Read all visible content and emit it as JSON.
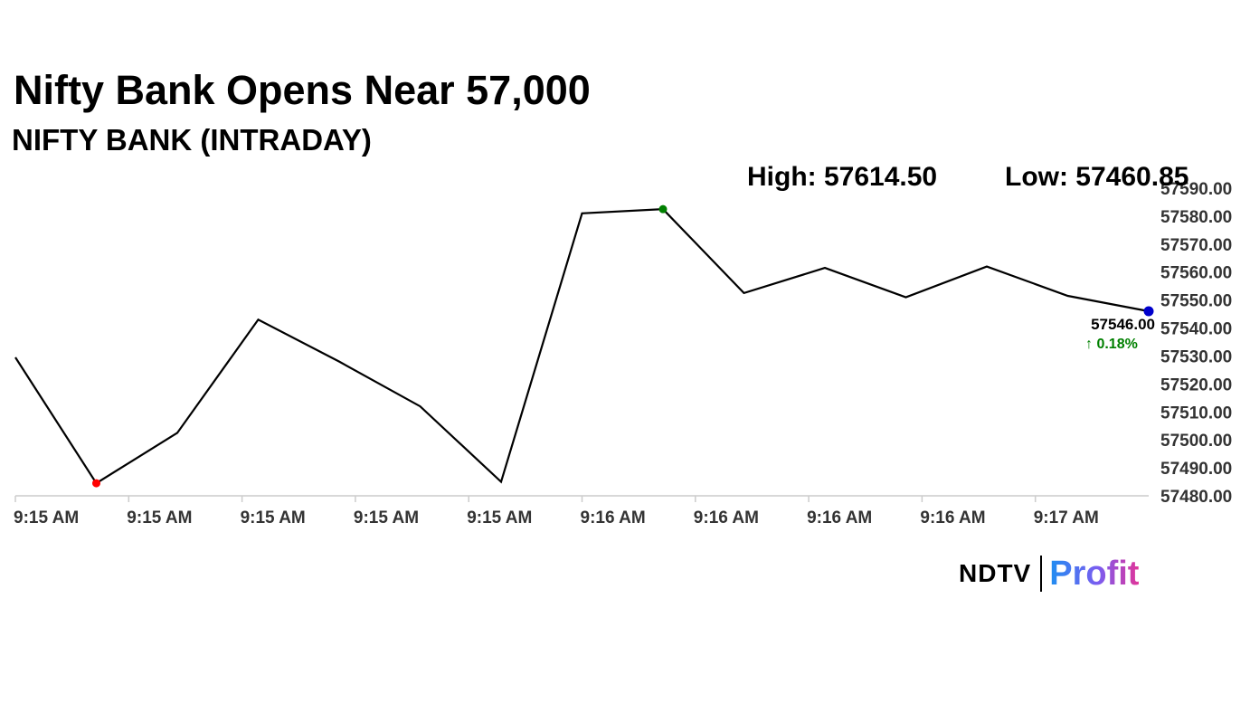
{
  "headline": "Nifty Bank Opens Near 57,000",
  "subhead": "NIFTY BANK (INTRADAY)",
  "stats": {
    "high_label": "High: 57614.50",
    "low_label": "Low: 57460.85"
  },
  "logo": {
    "brand": "NDTV",
    "product": "Profit"
  },
  "colors": {
    "line": "#000000",
    "low_marker": "#ff0000",
    "high_marker": "#008000",
    "last_marker": "#0000cc",
    "change_up": "#008000",
    "axis": "#cccccc"
  },
  "chart_data": {
    "type": "line",
    "title": "",
    "xlabel": "",
    "ylabel": "",
    "ylim": [
      57480,
      57590
    ],
    "yticks": [
      "57480.00",
      "57490.00",
      "57500.00",
      "57510.00",
      "57520.00",
      "57530.00",
      "57540.00",
      "57550.00",
      "57560.00",
      "57570.00",
      "57580.00",
      "57590.00"
    ],
    "xticks": [
      "9:15 AM",
      "9:15 AM",
      "9:15 AM",
      "9:15 AM",
      "9:15 AM",
      "9:16 AM",
      "9:16 AM",
      "9:16 AM",
      "9:16 AM",
      "9:17 AM"
    ],
    "series": [
      {
        "values": [
          57529.5,
          57484.5,
          57502.5,
          57543,
          57528,
          57512,
          57485,
          57581,
          57582.5,
          57552.5,
          57561.5,
          57551,
          57562,
          57551.5,
          57546
        ]
      }
    ],
    "low_marker_index": 1,
    "high_marker_index": 8,
    "last_value_label": "57546.00",
    "change_label": "↑ 0.18%",
    "grid": false,
    "legend": "none"
  }
}
